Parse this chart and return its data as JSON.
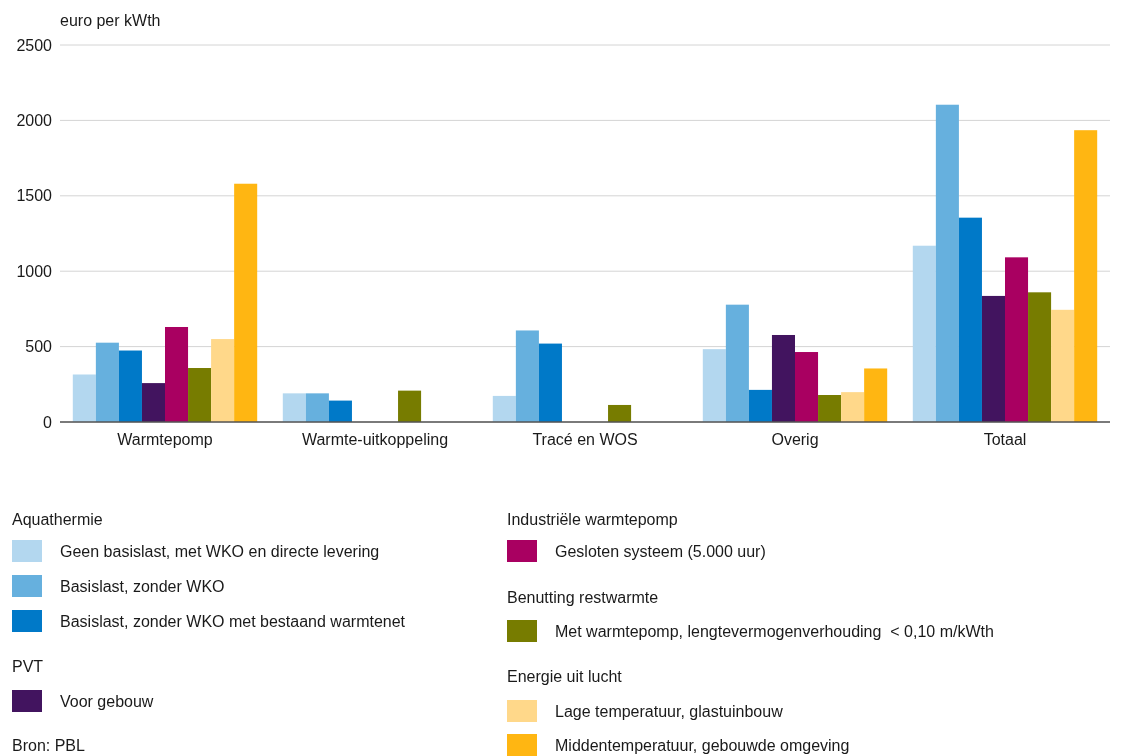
{
  "chart_data": {
    "type": "bar",
    "ylabel": "euro per kWth",
    "categories": [
      "Warmtepomp",
      "Warmte-uitkoppeling",
      "Tracé en WOS",
      "Overig",
      "Totaal"
    ],
    "ylim": [
      0,
      2500
    ],
    "yticks": [
      0,
      500,
      1000,
      1500,
      2000,
      2500
    ],
    "grid": "y",
    "legend": "bottom",
    "series": [
      {
        "name": "Geen basislast, met WKO en directe levering",
        "color": "#b3d7ef",
        "values": [
          315,
          190,
          173,
          483,
          1169
        ]
      },
      {
        "name": "Basislast, zonder WKO",
        "color": "#66b0de",
        "values": [
          526,
          190,
          607,
          778,
          2104
        ]
      },
      {
        "name": "Basislast, zonder WKO met bestaand warmtenet",
        "color": "#0079c8",
        "values": [
          474,
          142,
          520,
          213,
          1355
        ]
      },
      {
        "name": "Voor gebouw",
        "color": "#42145f",
        "values": [
          258,
          null,
          null,
          577,
          836
        ]
      },
      {
        "name": "Gesloten systeem (5.000 uur)",
        "color": "#a90061",
        "values": [
          630,
          null,
          null,
          464,
          1092
        ]
      },
      {
        "name": "Met warmtepomp, lengtevermogenverhouding  < 0,10 m/kWth",
        "color": "#777c00",
        "values": [
          358,
          208,
          113,
          179,
          860
        ]
      },
      {
        "name": "Lage temperatuur, glastuinbouw",
        "color": "#ffd88a",
        "values": [
          550,
          null,
          null,
          198,
          744
        ]
      },
      {
        "name": "Middentemperatuur, gebouwde omgeving",
        "color": "#ffb612",
        "values": [
          1580,
          null,
          null,
          355,
          1935
        ]
      }
    ],
    "annotations": [
      "Aquathermie",
      "PVT",
      "Industriële warmtepomp",
      "Benutting restwarmte",
      "Energie uit lucht",
      "Bron: PBL"
    ]
  }
}
